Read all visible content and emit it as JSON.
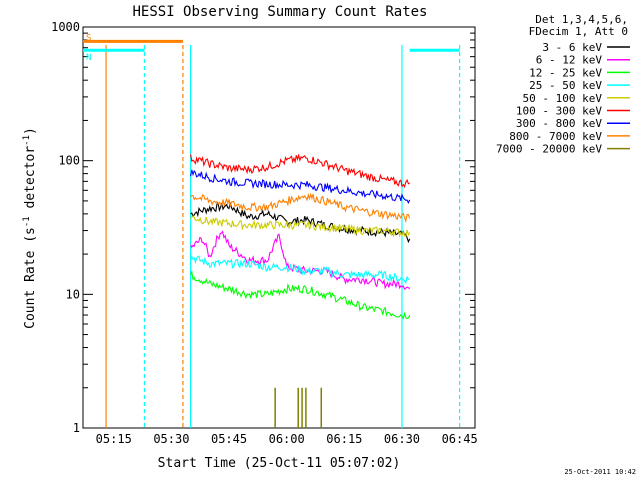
{
  "chart_data": {
    "type": "line",
    "title": "HESSI Observing Summary Count Rates",
    "xlabel": "Start Time (25-Oct-11 05:07:02)",
    "ylabel_main": "Count Rate (s",
    "ylabel_sup1": "-1",
    "ylabel_mid": " detector",
    "ylabel_sup2": "-1",
    "ylabel_end": ")",
    "yscale": "log",
    "ylim": [
      1,
      1000
    ],
    "y_ticks": [
      {
        "value": 1,
        "label": "1"
      },
      {
        "value": 10,
        "label": "10"
      },
      {
        "value": 100,
        "label": "100"
      },
      {
        "value": 1000,
        "label": "1000"
      }
    ],
    "xlim": [
      "05:07",
      "06:49"
    ],
    "x_ticks": [
      "05:15",
      "05:30",
      "05:45",
      "06:00",
      "06:15",
      "06:30",
      "06:45"
    ],
    "grid": false,
    "legend_position": "right",
    "legend_header": [
      "Det 1,3,4,5,6,",
      "FDecim 1, Att 0"
    ],
    "series": [
      {
        "name": "3 - 6 keV",
        "color": "#000000",
        "x": [
          "05:35",
          "05:40",
          "05:45",
          "05:50",
          "05:55",
          "06:00",
          "06:05",
          "06:10",
          "06:15",
          "06:20",
          "06:25",
          "06:30",
          "06:32"
        ],
        "values": [
          40,
          44,
          46,
          38,
          40,
          35,
          36,
          33,
          31,
          30,
          29,
          28,
          26
        ]
      },
      {
        "name": "6 - 12 keV",
        "color": "#ff00ff",
        "x": [
          "05:35",
          "05:38",
          "05:40",
          "05:43",
          "05:45",
          "05:50",
          "05:55",
          "05:58",
          "06:00",
          "06:05",
          "06:10",
          "06:15",
          "06:20",
          "06:25",
          "06:30",
          "06:32"
        ],
        "values": [
          22,
          26,
          19,
          30,
          23,
          18,
          18,
          27,
          16,
          15,
          15,
          13,
          13,
          12,
          12,
          11
        ]
      },
      {
        "name": "12 - 25 keV",
        "color": "#00ff00",
        "x": [
          "05:35",
          "05:40",
          "05:45",
          "05:50",
          "05:55",
          "06:00",
          "06:05",
          "06:10",
          "06:15",
          "06:20",
          "06:25",
          "06:30",
          "06:32"
        ],
        "values": [
          14,
          12,
          11,
          10,
          10,
          11,
          11,
          10,
          9,
          8,
          7.5,
          7,
          7
        ]
      },
      {
        "name": "25 - 50 keV",
        "color": "#00ffff",
        "x": [
          "05:35",
          "05:40",
          "05:45",
          "05:50",
          "05:55",
          "06:00",
          "06:05",
          "06:10",
          "06:15",
          "06:20",
          "06:25",
          "06:30",
          "06:32"
        ],
        "values": [
          19,
          17,
          17,
          17,
          16,
          16,
          15,
          15,
          14,
          14,
          14,
          13,
          13
        ]
      },
      {
        "name": "50 - 100 keV",
        "color": "#cccc00",
        "x": [
          "05:35",
          "05:40",
          "05:45",
          "05:50",
          "05:55",
          "06:00",
          "06:05",
          "06:10",
          "06:15",
          "06:20",
          "06:25",
          "06:30",
          "06:32"
        ],
        "values": [
          38,
          35,
          34,
          33,
          33,
          33,
          33,
          32,
          31,
          30,
          30,
          29,
          29
        ]
      },
      {
        "name": "100 - 300 keV",
        "color": "#ff0000",
        "x": [
          "05:35",
          "05:40",
          "05:45",
          "05:50",
          "05:55",
          "06:00",
          "06:05",
          "06:10",
          "06:15",
          "06:20",
          "06:25",
          "06:30",
          "06:32"
        ],
        "values": [
          105,
          95,
          88,
          86,
          90,
          100,
          105,
          95,
          85,
          78,
          72,
          68,
          68
        ]
      },
      {
        "name": "300 - 800 keV",
        "color": "#0000ff",
        "x": [
          "05:35",
          "05:40",
          "05:45",
          "05:50",
          "05:55",
          "06:00",
          "06:05",
          "06:10",
          "06:15",
          "06:20",
          "06:25",
          "06:30",
          "06:32"
        ],
        "values": [
          82,
          75,
          70,
          68,
          67,
          66,
          66,
          63,
          60,
          57,
          55,
          52,
          51
        ]
      },
      {
        "name": "800 - 7000 keV",
        "color": "#ff8000",
        "x": [
          "05:35",
          "05:40",
          "05:45",
          "05:50",
          "05:55",
          "06:00",
          "06:05",
          "06:10",
          "06:15",
          "06:20",
          "06:25",
          "06:30",
          "06:32"
        ],
        "values": [
          55,
          50,
          48,
          45,
          45,
          50,
          55,
          50,
          45,
          42,
          40,
          38,
          37
        ]
      },
      {
        "name": "7000 - 20000 keV",
        "color": "#808000",
        "spikes": [
          {
            "x": "05:57",
            "value": 2
          },
          {
            "x": "06:03",
            "value": 2
          },
          {
            "x": "06:04",
            "value": 2
          },
          {
            "x": "06:05",
            "value": 2
          },
          {
            "x": "06:09",
            "value": 2
          }
        ]
      }
    ],
    "status_bars": [
      {
        "label": "S",
        "color": "#ff8000",
        "x": [
          "05:07",
          "05:33"
        ],
        "value": 780
      },
      {
        "label": "N",
        "color": "#00ffff",
        "x": [
          "05:07",
          "05:23"
        ],
        "value": 670
      },
      {
        "label": "",
        "color": "#00ffff",
        "x": [
          "06:32",
          "06:45"
        ],
        "value": 670
      }
    ],
    "vertical_markers": [
      {
        "x": "05:13",
        "color": "#ff8000",
        "style": "solid"
      },
      {
        "x": "05:23",
        "color": "#00ffff",
        "style": "dashed"
      },
      {
        "x": "05:33",
        "color": "#ff8000",
        "style": "dashed"
      },
      {
        "x": "05:35",
        "color": "#00ffff",
        "style": "solid"
      },
      {
        "x": "06:30",
        "color": "#00ffff",
        "style": "solid"
      },
      {
        "x": "06:45",
        "color": "#00ffff",
        "style": "dashed"
      }
    ]
  },
  "footer": {
    "timestamp": "25-Oct-2011 10:42"
  }
}
